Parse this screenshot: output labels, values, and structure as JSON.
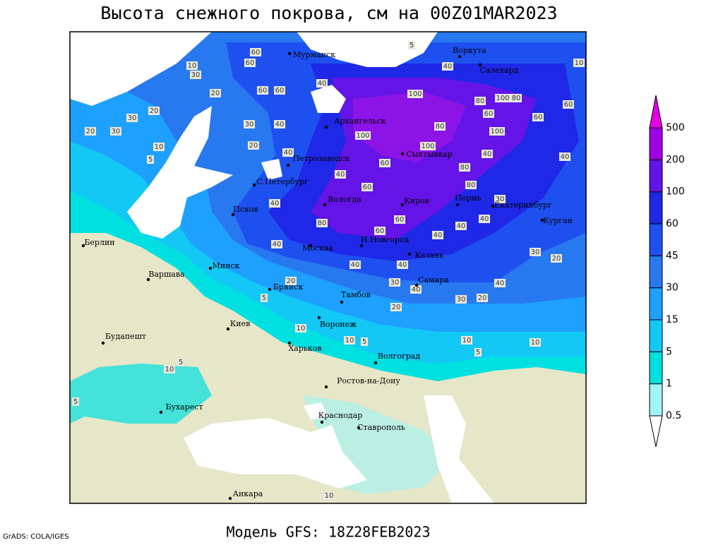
{
  "title": "Высота снежного покрова, см на 00Z01MAR2023",
  "footer": "Модель GFS: 18Z28FEB2023",
  "credit": "GrADS: COLA/IGES",
  "legend": {
    "levels": [
      0.5,
      1,
      5,
      15,
      30,
      45,
      60,
      100,
      200,
      500
    ],
    "colors": [
      "#ffffff",
      "#a0f5f5",
      "#00e0e0",
      "#14c8f5",
      "#1ea0ff",
      "#2878f0",
      "#1e50f0",
      "#1e28e6",
      "#6414e6",
      "#a000e6",
      "#e600e6"
    ]
  },
  "cities": [
    "Мурманск",
    "Воркута",
    "Салехард",
    "Архангельск",
    "Сыктывкар",
    "Петрозаводск",
    "С.Петербург",
    "Вологда",
    "Киров",
    "Пермь",
    "Екатеринбург",
    "Курган",
    "Псков",
    "Берлин",
    "Варшава",
    "Минск",
    "Москва",
    "Н.Новгород",
    "Казань",
    "Брянск",
    "Тамбов",
    "Самара",
    "Воронеж",
    "Киев",
    "Харьков",
    "Волгоград",
    "Будапешт",
    "Ростов-на-Дону",
    "Бухарест",
    "Краснодар",
    "Ставрополь",
    "Анкара"
  ],
  "contour_labels": [
    5,
    60,
    40,
    10,
    10,
    30,
    60,
    40,
    100,
    80,
    100,
    80,
    60,
    20,
    60,
    60,
    20,
    30,
    60,
    60,
    30,
    40,
    20,
    30,
    100,
    80,
    100,
    20,
    10,
    5,
    100,
    40,
    40,
    40,
    60,
    80,
    40,
    60,
    80,
    30,
    40,
    80,
    60,
    40,
    40,
    40,
    60,
    40,
    30,
    20,
    40,
    40,
    20,
    30,
    40,
    40,
    5,
    30,
    20,
    20,
    10,
    10,
    5,
    10,
    5,
    10,
    10,
    5,
    5,
    10
  ]
}
